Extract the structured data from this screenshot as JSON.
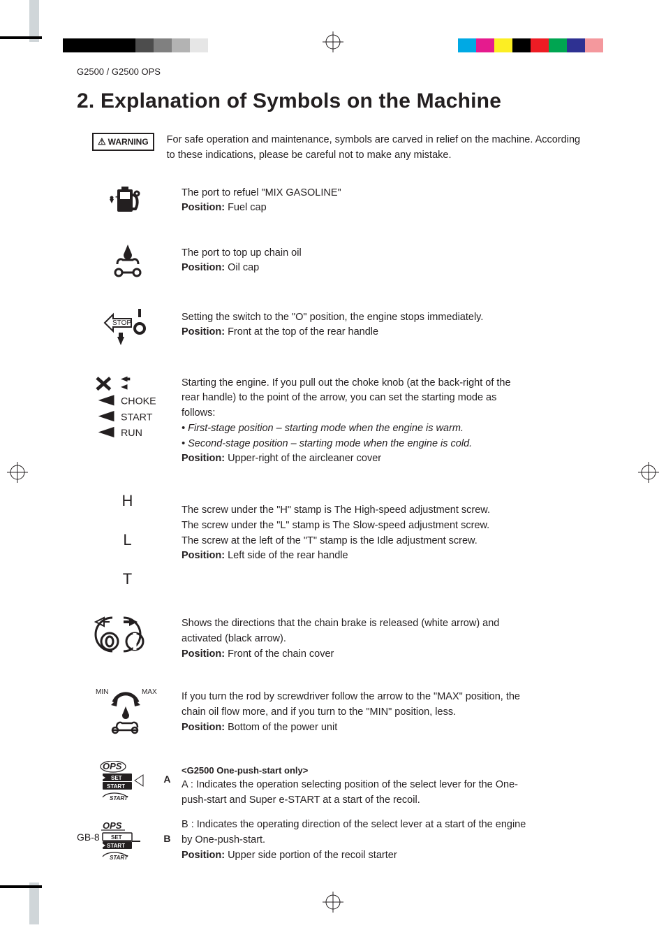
{
  "colors": {
    "text": "#231f20",
    "page_bg": "#ffffff",
    "corner_bar": "#d0d6d9",
    "bars_left": [
      "#000000",
      "#000000",
      "#000000",
      "#000000",
      "#4d4d4d",
      "#808080",
      "#b3b3b3",
      "#e6e6e6"
    ],
    "bars_right": [
      "#00a9e4",
      "#e51b8e",
      "#fcee23",
      "#000000",
      "#ed1c24",
      "#00a551",
      "#2e3192",
      "#f4989d"
    ]
  },
  "header": "G2500 / G2500 OPS",
  "title": "2. Explanation of Symbols on the Machine",
  "warning": {
    "badge": "WARNING",
    "text": "For safe operation and maintenance, symbols are carved in relief on the machine. According to these indications, please be careful not to make any mistake."
  },
  "symbols": {
    "fuel": {
      "desc": "The port to refuel \"MIX GASOLINE\"",
      "pos_label": "Position:",
      "pos_value": "Fuel cap"
    },
    "oil": {
      "desc": "The port to top up chain oil",
      "pos_label": "Position:",
      "pos_value": "Oil cap"
    },
    "stop": {
      "desc": "Setting the switch to the \"O\" position, the engine stops immediately.",
      "pos_label": "Position:",
      "pos_value": "Front at the top of the rear handle"
    },
    "choke": {
      "icon_labels": [
        "CHOKE",
        "START",
        "RUN"
      ],
      "intro": "Starting the engine. If you pull out the choke knob (at the back-right of the rear handle) to the point of the arrow, you can set the starting mode as follows:",
      "bullet1": "• First-stage position – starting mode when the engine is warm.",
      "bullet2": "• Second-stage position – starting mode when the engine is cold.",
      "pos_label": "Position:",
      "pos_value": "Upper-right of the aircleaner cover"
    },
    "hlt": {
      "letters": [
        "H",
        "L",
        "T"
      ],
      "line1": "The screw under the \"H\" stamp is The High-speed adjustment screw.",
      "line2": "The screw under the \"L\" stamp is The Slow-speed adjustment screw.",
      "line3": "The screw at the left of the \"T\" stamp is the Idle adjustment screw.",
      "pos_label": "Position:",
      "pos_value": "Left side of the rear handle"
    },
    "brake": {
      "desc": "Shows the directions that the chain brake is released (white arrow) and activated (black arrow).",
      "pos_label": "Position:",
      "pos_value": "Front of the chain cover"
    },
    "minmax": {
      "min": "MIN",
      "max": "MAX",
      "desc": "If you turn the rod by screwdriver follow the arrow to the \"MAX\" position, the chain oil flow more, and if you turn to the \"MIN\" position, less.",
      "pos_label": "Position:",
      "pos_value": "Bottom of the power unit"
    },
    "ops": {
      "heading": "<G2500 One-push-start only>",
      "label_a": "A",
      "label_b": "B",
      "icon_texts": {
        "ops": "OPS",
        "set": "SET",
        "start": "START",
        "estart": "START"
      },
      "line_a": "A : Indicates the operation selecting position of the select lever for the One-push-start and Super e-START at a start of the recoil.",
      "line_b": "B : Indicates the operating direction of the select lever at a start of the engine by One-push-start.",
      "pos_label": "Position:",
      "pos_value": "Upper side portion of the recoil starter"
    }
  },
  "page_number": "GB-8"
}
